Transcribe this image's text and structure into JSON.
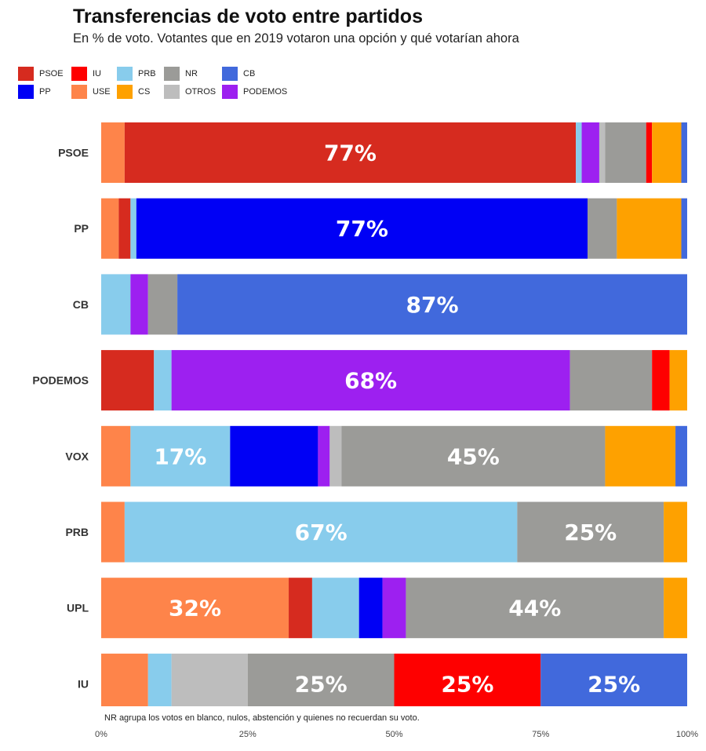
{
  "chart_data": {
    "type": "bar",
    "orientation": "horizontal",
    "stacked": true,
    "title": "Transferencias de voto entre partidos",
    "subtitle": "En % de voto. Votantes que en 2019 votaron una opción y qué votarían ahora",
    "xlabel": "",
    "ylabel": "",
    "xlim": [
      0,
      100
    ],
    "x_ticks": [
      "0%",
      "25%",
      "50%",
      "75%",
      "100%"
    ],
    "note": "NR agrupa los votos en blanco, nulos, abstención y quienes no recuerdan su voto.",
    "legend_position": "top-left",
    "grid": false,
    "legend": [
      {
        "name": "PSOE",
        "color": "#d62b1f"
      },
      {
        "name": "IU",
        "color": "#fe0000"
      },
      {
        "name": "PRB",
        "color": "#88ccec"
      },
      {
        "name": "NR",
        "color": "#9b9b98"
      },
      {
        "name": "CB",
        "color": "#4169dc"
      },
      {
        "name": "PP",
        "color": "#0000f5"
      },
      {
        "name": "USE",
        "color": "#fe844a"
      },
      {
        "name": "CS",
        "color": "#fea100"
      },
      {
        "name": "OTROS",
        "color": "#bdbdbd"
      },
      {
        "name": "PODEMOS",
        "color": "#9d20f0"
      }
    ],
    "rows": [
      {
        "category": "PSOE",
        "segments": [
          {
            "party": "USE",
            "value": 4
          },
          {
            "party": "PSOE",
            "value": 77,
            "label": "77%"
          },
          {
            "party": "PRB",
            "value": 1
          },
          {
            "party": "PODEMOS",
            "value": 3
          },
          {
            "party": "OTROS",
            "value": 1
          },
          {
            "party": "NR",
            "value": 7
          },
          {
            "party": "IU",
            "value": 1
          },
          {
            "party": "CS",
            "value": 5
          },
          {
            "party": "CB",
            "value": 1
          }
        ]
      },
      {
        "category": "PP",
        "segments": [
          {
            "party": "USE",
            "value": 3
          },
          {
            "party": "PSOE",
            "value": 2
          },
          {
            "party": "PRB",
            "value": 1
          },
          {
            "party": "PP",
            "value": 77,
            "label": "77%"
          },
          {
            "party": "NR",
            "value": 5
          },
          {
            "party": "CS",
            "value": 11
          },
          {
            "party": "CB",
            "value": 1
          }
        ]
      },
      {
        "category": "CB",
        "segments": [
          {
            "party": "PRB",
            "value": 5
          },
          {
            "party": "PODEMOS",
            "value": 3
          },
          {
            "party": "NR",
            "value": 5
          },
          {
            "party": "CB",
            "value": 87,
            "label": "87%"
          }
        ]
      },
      {
        "category": "PODEMOS",
        "segments": [
          {
            "party": "PSOE",
            "value": 9
          },
          {
            "party": "PRB",
            "value": 3
          },
          {
            "party": "PODEMOS",
            "value": 68,
            "label": "68%"
          },
          {
            "party": "NR",
            "value": 14
          },
          {
            "party": "IU",
            "value": 3
          },
          {
            "party": "CS",
            "value": 3
          }
        ]
      },
      {
        "category": "VOX",
        "segments": [
          {
            "party": "USE",
            "value": 5
          },
          {
            "party": "PRB",
            "value": 17,
            "label": "17%"
          },
          {
            "party": "PP",
            "value": 15
          },
          {
            "party": "PODEMOS",
            "value": 2
          },
          {
            "party": "OTROS",
            "value": 2
          },
          {
            "party": "NR",
            "value": 45,
            "label": "45%"
          },
          {
            "party": "CS",
            "value": 12
          },
          {
            "party": "CB",
            "value": 2
          }
        ]
      },
      {
        "category": "PRB",
        "segments": [
          {
            "party": "USE",
            "value": 4
          },
          {
            "party": "PRB",
            "value": 67,
            "label": "67%"
          },
          {
            "party": "NR",
            "value": 25,
            "label": "25%"
          },
          {
            "party": "CS",
            "value": 4
          }
        ]
      },
      {
        "category": "UPL",
        "segments": [
          {
            "party": "USE",
            "value": 32,
            "label": "32%"
          },
          {
            "party": "PSOE",
            "value": 4
          },
          {
            "party": "PRB",
            "value": 8
          },
          {
            "party": "PP",
            "value": 4
          },
          {
            "party": "PODEMOS",
            "value": 4
          },
          {
            "party": "NR",
            "value": 44,
            "label": "44%"
          },
          {
            "party": "CS",
            "value": 4
          }
        ]
      },
      {
        "category": "IU",
        "segments": [
          {
            "party": "USE",
            "value": 8
          },
          {
            "party": "PRB",
            "value": 4
          },
          {
            "party": "OTROS",
            "value": 13
          },
          {
            "party": "NR",
            "value": 25,
            "label": "25%"
          },
          {
            "party": "IU",
            "value": 25,
            "label": "25%"
          },
          {
            "party": "CB",
            "value": 25,
            "label": "25%"
          }
        ]
      }
    ]
  }
}
